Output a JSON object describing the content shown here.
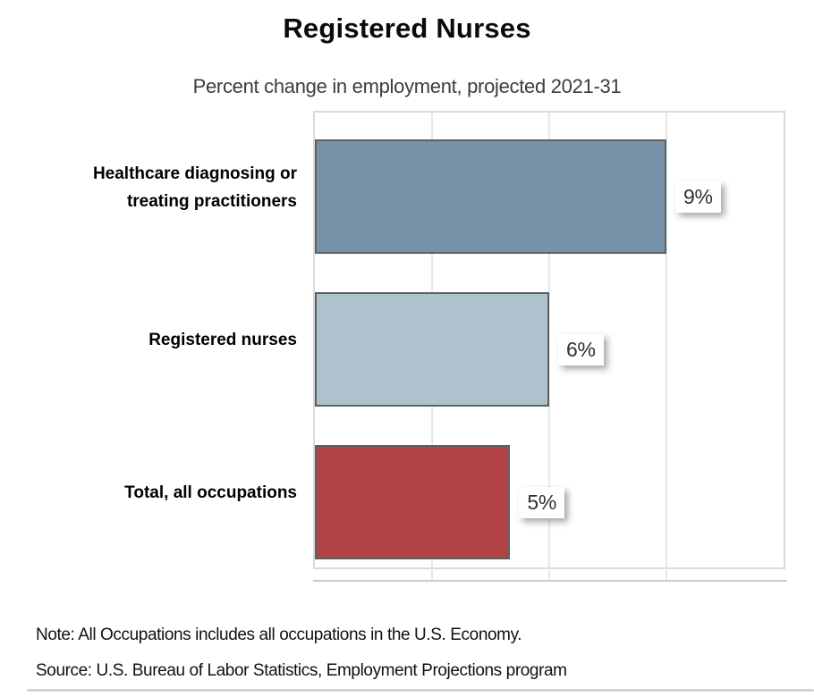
{
  "page": {
    "title": "Registered Nurses",
    "subtitle": "Percent change in employment, projected 2021-31",
    "note": "Note: All Occupations includes all occupations in the U.S. Economy.",
    "source": "Source: U.S. Bureau of Labor Statistics, Employment Projections program"
  },
  "chart_data": {
    "type": "bar",
    "orientation": "horizontal",
    "title": "Registered Nurses",
    "subtitle": "Percent change in employment, projected 2021-31",
    "categories": [
      "Healthcare diagnosing or treating practitioners",
      "Registered nurses",
      "Total, all occupations"
    ],
    "values": [
      9,
      6,
      5
    ],
    "value_labels": [
      "9%",
      "6%",
      "5%"
    ],
    "unit": "percent",
    "xlim": [
      0,
      12
    ],
    "x_gridlines": [
      3,
      6,
      9
    ],
    "grid": "vertical-only",
    "legend": "none",
    "bar_colors": [
      "#7893a9",
      "#adc2cc",
      "#b14345"
    ],
    "bar_border_color": "#5e5f61",
    "gridline_color": "#e7e7e7",
    "plot_border_color": "#dadada",
    "value_label_style": "white box with drop shadow, right of bar"
  }
}
